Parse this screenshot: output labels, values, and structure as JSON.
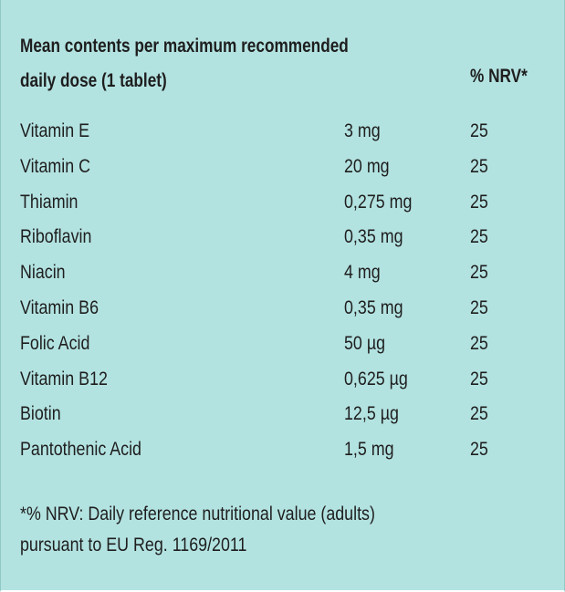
{
  "header": {
    "title_line1": "Mean contents per maximum recommended",
    "title_line2": "daily dose (1 tablet)",
    "nrv_label": "% NRV*"
  },
  "nutrients": [
    {
      "name": "Vitamin E",
      "amount": "3 mg",
      "nrv": "25"
    },
    {
      "name": "Vitamin C",
      "amount": "20 mg",
      "nrv": "25"
    },
    {
      "name": "Thiamin",
      "amount": "0,275 mg",
      "nrv": "25"
    },
    {
      "name": "Riboflavin",
      "amount": "0,35 mg",
      "nrv": "25"
    },
    {
      "name": "Niacin",
      "amount": "4 mg",
      "nrv": "25"
    },
    {
      "name": "Vitamin B6",
      "amount": "0,35 mg",
      "nrv": "25"
    },
    {
      "name": "Folic Acid",
      "amount": "50 µg",
      "nrv": "25"
    },
    {
      "name": "Vitamin B12",
      "amount": "0,625 µg",
      "nrv": "25"
    },
    {
      "name": "Biotin",
      "amount": "12,5 µg",
      "nrv": "25"
    },
    {
      "name": "Pantothenic Acid",
      "amount": "1,5 mg",
      "nrv": "25"
    }
  ],
  "footnote": {
    "line1": "*% NRV: Daily reference nutritional value (adults)",
    "line2": "pursuant to EU Reg. 1169/2011"
  },
  "colors": {
    "background": "#b3e3e1",
    "text": "#1e1e1e"
  }
}
